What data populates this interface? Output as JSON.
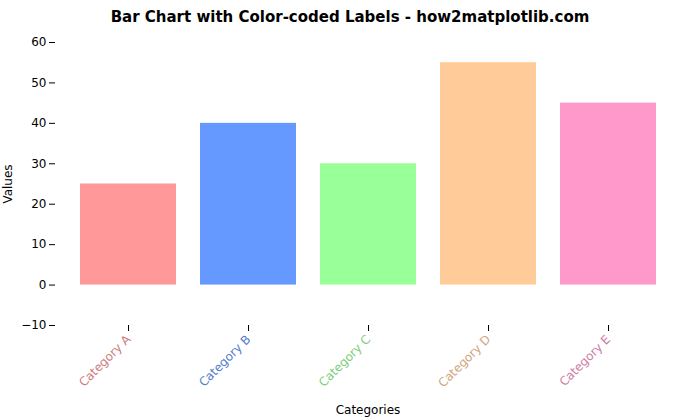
{
  "chart_data": {
    "type": "bar",
    "title": "Bar Chart with Color-coded Labels - how2matplotlib.com",
    "xlabel": "Categories",
    "ylabel": "Values",
    "categories": [
      "Category A",
      "Category B",
      "Category C",
      "Category D",
      "Category E"
    ],
    "values": [
      25,
      40,
      30,
      55,
      45
    ],
    "colors": [
      "#ff9999",
      "#6699ff",
      "#99ff99",
      "#ffcc99",
      "#ff99cc"
    ],
    "ylim": [
      -10,
      60
    ],
    "yticks": [
      -10,
      0,
      10,
      20,
      30,
      40,
      50,
      60
    ],
    "grid": false
  }
}
